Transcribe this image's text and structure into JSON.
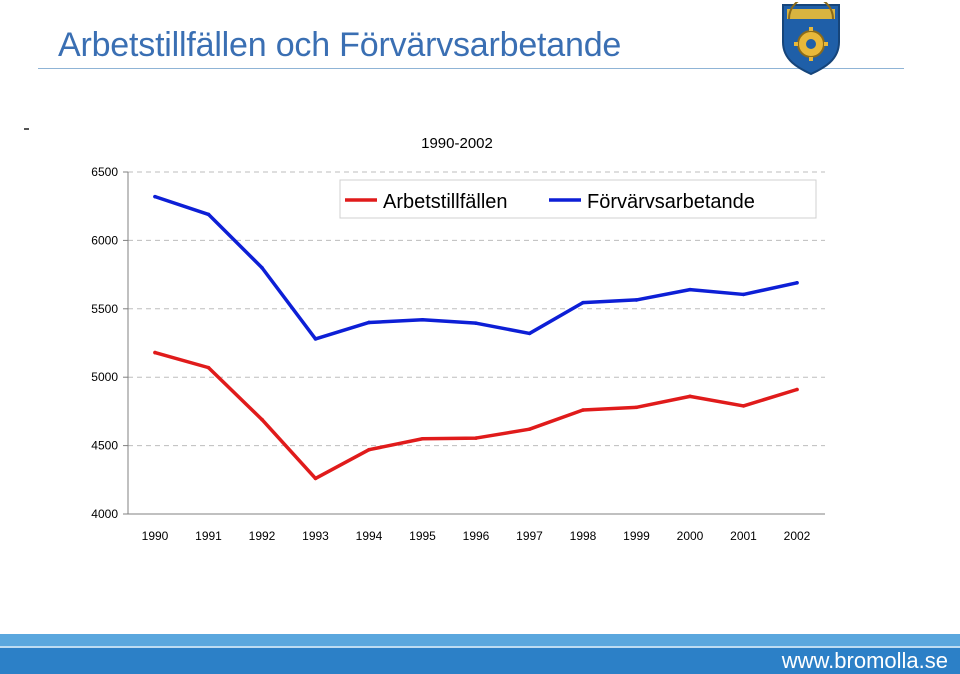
{
  "page": {
    "title": "Arbetstillfällen och Förvärvsarbetande",
    "footer_url": "www.bromolla.se",
    "colors": {
      "title": "#3a6fb3",
      "arbetstillfallen": "#e01b1b",
      "forvarvsarbetande": "#0d1fd6",
      "band_light": "#5aa7de",
      "band_dark": "#2c80c7"
    },
    "logo_icon": "municipal-coat-of-arms-icon"
  },
  "chart_data": {
    "type": "line",
    "title": "1990-2002",
    "xlabel": "",
    "ylabel": "",
    "categories": [
      "1990",
      "1991",
      "1992",
      "1993",
      "1994",
      "1995",
      "1996",
      "1997",
      "1998",
      "1999",
      "2000",
      "2001",
      "2002"
    ],
    "series": [
      {
        "name": "Arbetstillfällen",
        "color": "#e01b1b",
        "values": [
          5180,
          5070,
          4690,
          4260,
          4470,
          4550,
          4555,
          4620,
          4760,
          4780,
          4860,
          4790,
          4910
        ]
      },
      {
        "name": "Förvärvsarbetande",
        "color": "#0d1fd6",
        "values": [
          6320,
          6190,
          5800,
          5280,
          5400,
          5420,
          5395,
          5320,
          5545,
          5565,
          5640,
          5605,
          5690
        ]
      }
    ],
    "yticks": [
      "4000",
      "4500",
      "5000",
      "5500",
      "6000",
      "6500"
    ],
    "ylim": [
      4000,
      6500
    ],
    "grid": true,
    "legend_position": "top-right"
  }
}
